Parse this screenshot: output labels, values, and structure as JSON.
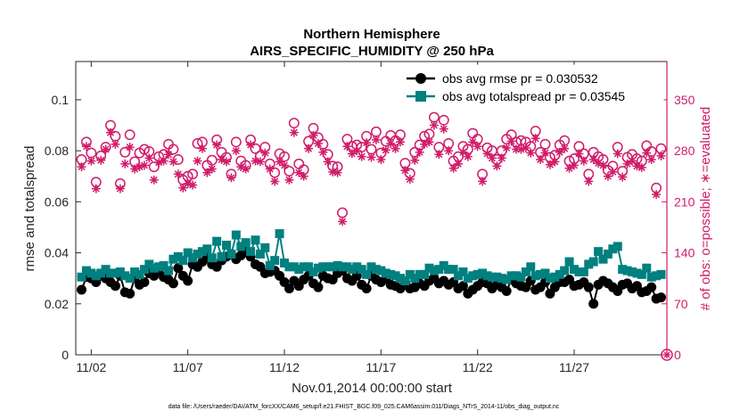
{
  "chart_data": {
    "type": "line",
    "title": "Northern Hemisphere",
    "subtitle": "AIRS_SPECIFIC_HUMIDITY @ 250 hPa",
    "xlabel": "Nov.01,2014 00:00:00 start",
    "ylabel": "rmse and totalspread",
    "ylabel_right": "# of obs: o=possible; ∗=evaluated",
    "footer": "data file: /Users/raeder/DAI/ATM_forcXX/CAM6_setup/f.e21.FHIST_BGC.f09_025.CAM6assim.011/Diags_NTrS_2014-11/obs_diag_output.nc",
    "xlim": [
      0.7,
      31.3
    ],
    "ylim": [
      0,
      0.115
    ],
    "ylim_right": [
      0,
      402.5
    ],
    "x_ticks": [
      1.5,
      6.5,
      11.5,
      16.5,
      21.5,
      26.5
    ],
    "x_tick_labels": [
      "11/02",
      "11/07",
      "11/12",
      "11/17",
      "11/22",
      "11/27"
    ],
    "y_ticks": [
      0,
      0.02,
      0.04,
      0.06,
      0.08,
      0.1
    ],
    "y_tick_labels": [
      "0",
      "0.02",
      "0.04",
      "0.06",
      "0.08",
      "0.1"
    ],
    "y_right_ticks": [
      0,
      70,
      140,
      210,
      280,
      350
    ],
    "y_right_tick_labels": [
      "0",
      "70",
      "140",
      "210",
      "280",
      "350"
    ],
    "legend": [
      {
        "label": "obs avg rmse pr = 0.030532",
        "color": "#000000",
        "marker": "circle"
      },
      {
        "label": "obs avg totalspread pr = 0.03545",
        "color": "#00807f",
        "marker": "square"
      }
    ],
    "colors": {
      "rmse": "#000000",
      "spread": "#00807f",
      "obs": "#d01c6a",
      "axis": "#262626"
    },
    "x": [
      1,
      1.25,
      1.5,
      1.75,
      2,
      2.25,
      2.5,
      2.75,
      3,
      3.25,
      3.5,
      3.75,
      4,
      4.25,
      4.5,
      4.75,
      5,
      5.25,
      5.5,
      5.75,
      6,
      6.25,
      6.5,
      6.75,
      7,
      7.25,
      7.5,
      7.75,
      8,
      8.25,
      8.5,
      8.75,
      9,
      9.25,
      9.5,
      9.75,
      10,
      10.25,
      10.5,
      10.75,
      11,
      11.25,
      11.5,
      11.75,
      12,
      12.25,
      12.5,
      12.75,
      13,
      13.25,
      13.5,
      13.75,
      14,
      14.25,
      14.5,
      14.75,
      15,
      15.25,
      15.5,
      15.75,
      16,
      16.25,
      16.5,
      16.75,
      17,
      17.25,
      17.5,
      17.75,
      18,
      18.25,
      18.5,
      18.75,
      19,
      19.25,
      19.5,
      19.75,
      20,
      20.25,
      20.5,
      20.75,
      21,
      21.25,
      21.5,
      21.75,
      22,
      22.25,
      22.5,
      22.75,
      23,
      23.25,
      23.5,
      23.75,
      24,
      24.25,
      24.5,
      24.75,
      25,
      25.25,
      25.5,
      25.75,
      26,
      26.25,
      26.5,
      26.75,
      27,
      27.25,
      27.5,
      27.75,
      28,
      28.25,
      28.5,
      28.75,
      29,
      29.25,
      29.5,
      29.75,
      30,
      30.25,
      30.5,
      30.75,
      31
    ],
    "series": [
      {
        "name": "obs avg rmse",
        "values": [
          0.0255,
          0.0305,
          0.03,
          0.0285,
          0.031,
          0.03,
          0.0285,
          0.027,
          0.031,
          0.0245,
          0.024,
          0.03,
          0.0275,
          0.0285,
          0.032,
          0.031,
          0.033,
          0.0305,
          0.0295,
          0.028,
          0.034,
          0.031,
          0.029,
          0.0355,
          0.0345,
          0.0365,
          0.038,
          0.0355,
          0.0345,
          0.037,
          0.0385,
          0.0395,
          0.0375,
          0.039,
          0.0405,
          0.0385,
          0.0355,
          0.0345,
          0.032,
          0.0325,
          0.033,
          0.031,
          0.0285,
          0.026,
          0.029,
          0.027,
          0.0295,
          0.031,
          0.028,
          0.0265,
          0.031,
          0.03,
          0.0295,
          0.032,
          0.033,
          0.03,
          0.029,
          0.031,
          0.0275,
          0.026,
          0.031,
          0.0295,
          0.0285,
          0.03,
          0.0275,
          0.027,
          0.026,
          0.0285,
          0.026,
          0.0265,
          0.028,
          0.027,
          0.029,
          0.03,
          0.028,
          0.029,
          0.0275,
          0.0285,
          0.026,
          0.027,
          0.024,
          0.0255,
          0.027,
          0.0285,
          0.028,
          0.026,
          0.0275,
          0.0265,
          0.025,
          0.0295,
          0.028,
          0.027,
          0.0265,
          0.029,
          0.0255,
          0.0265,
          0.0285,
          0.024,
          0.0265,
          0.0285,
          0.0285,
          0.0295,
          0.027,
          0.0275,
          0.0285,
          0.0265,
          0.02,
          0.0275,
          0.029,
          0.028,
          0.0265,
          0.025,
          0.0275,
          0.028,
          0.026,
          0.027,
          0.0245,
          0.025,
          0.0265,
          0.022,
          0.0225
        ]
      },
      {
        "name": "obs avg totalspread",
        "values": [
          0.0305,
          0.033,
          0.032,
          0.031,
          0.032,
          0.0335,
          0.032,
          0.032,
          0.0325,
          0.031,
          0.03,
          0.0325,
          0.0315,
          0.0335,
          0.0355,
          0.034,
          0.0345,
          0.035,
          0.033,
          0.0375,
          0.0385,
          0.037,
          0.04,
          0.038,
          0.0395,
          0.0405,
          0.0415,
          0.038,
          0.0445,
          0.0385,
          0.043,
          0.0395,
          0.047,
          0.0425,
          0.044,
          0.0405,
          0.045,
          0.0395,
          0.042,
          0.035,
          0.037,
          0.0475,
          0.036,
          0.0345,
          0.0345,
          0.0335,
          0.0345,
          0.0345,
          0.0325,
          0.034,
          0.0345,
          0.0345,
          0.0345,
          0.035,
          0.0345,
          0.0345,
          0.0335,
          0.0345,
          0.0335,
          0.0315,
          0.0345,
          0.0335,
          0.033,
          0.032,
          0.0315,
          0.031,
          0.03,
          0.029,
          0.0315,
          0.03,
          0.0315,
          0.0315,
          0.034,
          0.033,
          0.0335,
          0.035,
          0.0335,
          0.0335,
          0.031,
          0.0325,
          0.03,
          0.031,
          0.0315,
          0.032,
          0.031,
          0.0305,
          0.0305,
          0.03,
          0.0295,
          0.031,
          0.031,
          0.0305,
          0.0325,
          0.0345,
          0.031,
          0.0315,
          0.032,
          0.03,
          0.0305,
          0.0315,
          0.033,
          0.0365,
          0.0335,
          0.0325,
          0.0325,
          0.0355,
          0.0365,
          0.0405,
          0.0375,
          0.0395,
          0.0415,
          0.0425,
          0.0335,
          0.033,
          0.0325,
          0.032,
          0.0315,
          0.034,
          0.0305,
          0.031,
          0.0315
        ]
      },
      {
        "name": "obs possible",
        "values": [
          268,
          292,
          277,
          237,
          273,
          285,
          315,
          300,
          235,
          278,
          302,
          265,
          277,
          282,
          279,
          258,
          272,
          275,
          289,
          282,
          268,
          240,
          245,
          248,
          290,
          292,
          260,
          267,
          295,
          278,
          271,
          248,
          292,
          266,
          260,
          295,
          283,
          273,
          285,
          262,
          250,
          276,
          272,
          252,
          318,
          262,
          254,
          293,
          311,
          298,
          289,
          275,
          259,
          258,
          195,
          296,
          286,
          288,
          285,
          300,
          282,
          306,
          277,
          293,
          301,
          294,
          302,
          263,
          249,
          278,
          288,
          300,
          303,
          326,
          285,
          322,
          290,
          266,
          272,
          286,
          282,
          304,
          296,
          248,
          284,
          280,
          268,
          280,
          296,
          302,
          292,
          294,
          292,
          286,
          307,
          278,
          289,
          271,
          274,
          288,
          294,
          266,
          269,
          286,
          276,
          248,
          278,
          272,
          268,
          253,
          259,
          285,
          252,
          271,
          275,
          269,
          266,
          287,
          279,
          229,
          283
        ]
      },
      {
        "name": "obs evaluated",
        "values": [
          258,
          286,
          266,
          228,
          267,
          282,
          305,
          289,
          228,
          262,
          285,
          255,
          258,
          260,
          270,
          240,
          264,
          266,
          275,
          265,
          248,
          229,
          235,
          233,
          266,
          283,
          250,
          255,
          288,
          268,
          265,
          243,
          280,
          258,
          255,
          288,
          266,
          265,
          277,
          255,
          238,
          265,
          260,
          240,
          305,
          250,
          245,
          283,
          301,
          290,
          278,
          265,
          251,
          250,
          183,
          286,
          276,
          280,
          272,
          291,
          271,
          295,
          268,
          281,
          290,
          283,
          292,
          253,
          241,
          267,
          278,
          289,
          292,
          315,
          275,
          310,
          280,
          256,
          262,
          278,
          272,
          292,
          286,
          238,
          276,
          270,
          259,
          270,
          284,
          293,
          282,
          282,
          284,
          277,
          297,
          268,
          277,
          261,
          265,
          278,
          283,
          256,
          260,
          276,
          266,
          238,
          268,
          263,
          260,
          245,
          251,
          276,
          244,
          262,
          266,
          259,
          257,
          277,
          268,
          220,
          273
        ]
      }
    ]
  }
}
